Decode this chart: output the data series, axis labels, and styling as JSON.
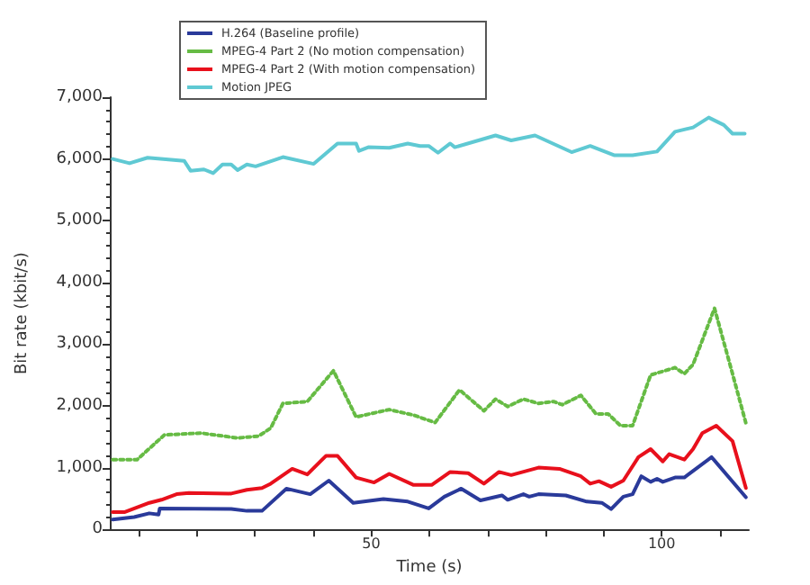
{
  "chart_data": {
    "type": "line",
    "xlabel": "Time (s)",
    "ylabel": "Bit rate (kbit/s)",
    "xlim": [
      5,
      115
    ],
    "xticks": [
      {
        "value": 10,
        "label": null
      },
      {
        "value": 20,
        "label": null
      },
      {
        "value": 30,
        "label": null
      },
      {
        "value": 40,
        "label": null
      },
      50,
      {
        "value": 60,
        "label": null
      },
      {
        "value": 70,
        "label": null
      },
      {
        "value": 80,
        "label": null
      },
      {
        "value": 90,
        "label": null
      },
      100,
      {
        "value": 110,
        "label": null
      }
    ],
    "ylim": [
      0,
      7000
    ],
    "yticks": [
      0,
      {
        "value": 1000,
        "label": "1,000"
      },
      {
        "value": 2000,
        "label": "2,000"
      },
      {
        "value": 3000,
        "label": "3,000"
      },
      {
        "value": 4000,
        "label": "4,000"
      },
      {
        "value": 5000,
        "label": "5,000"
      },
      {
        "value": 6000,
        "label": "6,000"
      },
      {
        "value": 7000,
        "label": "7,000"
      }
    ],
    "grid": false,
    "legend": "top left",
    "marker": "none",
    "series": [
      {
        "name": "H.264 (Baseline profile)",
        "color": "#2a3a9a",
        "line_style": "solid",
        "x": [
          5.5,
          9.2,
          11.8,
          13.4,
          13.6,
          25.9,
          28.6,
          31.2,
          35.4,
          39.5,
          42.7,
          46.9,
          52.1,
          56.3,
          59.9,
          62.6,
          65.5,
          68.8,
          72.5,
          73.5,
          76.2,
          77.2,
          78.8,
          83.5,
          87.1,
          89.7,
          91.3,
          93.4,
          95.0,
          96.5,
          98.1,
          99.2,
          100.2,
          102.3,
          103.9,
          108.6,
          114.5
        ],
        "values": [
          160,
          200,
          260,
          240,
          340,
          330,
          300,
          300,
          660,
          570,
          790,
          430,
          490,
          450,
          340,
          530,
          660,
          470,
          550,
          480,
          570,
          530,
          570,
          550,
          450,
          430,
          330,
          530,
          570,
          860,
          770,
          820,
          770,
          840,
          840,
          1170,
          520
        ]
      },
      {
        "name": "MPEG-4 Part 2 (No motion compensation)",
        "color": "#66bb44",
        "line_style": "dotted",
        "x": [
          5.5,
          9.7,
          14.4,
          20.7,
          27.0,
          30.6,
          32.7,
          34.8,
          39.0,
          43.5,
          47.4,
          53.1,
          57.3,
          61.0,
          65.2,
          69.4,
          71.4,
          73.5,
          76.2,
          78.8,
          81.4,
          82.9,
          86.1,
          88.7,
          90.8,
          92.9,
          95.0,
          98.1,
          102.3,
          103.9,
          105.4,
          109.1,
          112.2,
          114.5
        ],
        "values": [
          1130,
          1130,
          1530,
          1560,
          1480,
          1510,
          1640,
          2040,
          2070,
          2570,
          1820,
          1940,
          1850,
          1730,
          2260,
          1920,
          2110,
          1990,
          2110,
          2040,
          2070,
          2020,
          2170,
          1870,
          1870,
          1680,
          1680,
          2500,
          2620,
          2520,
          2670,
          3580,
          2520,
          1720
        ]
      },
      {
        "name": "MPEG-4 Part 2 (With motion compensation)",
        "color": "#e8101c",
        "line_style": "solid",
        "x": [
          5.5,
          7.6,
          11.8,
          13.9,
          16.5,
          18.6,
          25.9,
          28.6,
          31.2,
          32.7,
          36.4,
          39.0,
          42.2,
          44.2,
          47.4,
          50.5,
          53.1,
          57.3,
          60.4,
          63.6,
          66.7,
          69.4,
          72.0,
          74.1,
          78.8,
          82.4,
          86.1,
          87.7,
          89.2,
          91.3,
          93.4,
          96.0,
          98.1,
          100.2,
          101.3,
          103.9,
          105.4,
          107.0,
          109.4,
          112.2,
          114.5
        ],
        "values": [
          280,
          280,
          430,
          480,
          570,
          590,
          580,
          640,
          670,
          740,
          980,
          890,
          1190,
          1190,
          840,
          760,
          900,
          720,
          720,
          930,
          910,
          740,
          930,
          880,
          1000,
          980,
          860,
          740,
          780,
          690,
          790,
          1170,
          1300,
          1100,
          1220,
          1130,
          1300,
          1560,
          1680,
          1430,
          670
        ]
      },
      {
        "name": "Motion JPEG",
        "color": "#5fc9d3",
        "line_style": "solid",
        "x": [
          5.5,
          8.4,
          11.5,
          17.8,
          18.9,
          21.2,
          22.8,
          24.4,
          25.9,
          27.0,
          28.6,
          30.1,
          34.8,
          40.1,
          44.2,
          47.4,
          47.9,
          49.5,
          53.1,
          56.3,
          58.4,
          59.9,
          61.5,
          63.6,
          64.4,
          71.4,
          74.1,
          78.2,
          84.5,
          87.7,
          91.8,
          95.0,
          99.2,
          102.3,
          105.4,
          108.1,
          110.7,
          112.2,
          114.3
        ],
        "values": [
          6000,
          5930,
          6020,
          5970,
          5810,
          5830,
          5770,
          5910,
          5910,
          5820,
          5910,
          5880,
          6030,
          5920,
          6250,
          6250,
          6130,
          6190,
          6180,
          6250,
          6210,
          6210,
          6100,
          6250,
          6190,
          6380,
          6300,
          6380,
          6110,
          6210,
          6060,
          6060,
          6120,
          6440,
          6510,
          6670,
          6550,
          6410,
          6410
        ]
      }
    ]
  }
}
